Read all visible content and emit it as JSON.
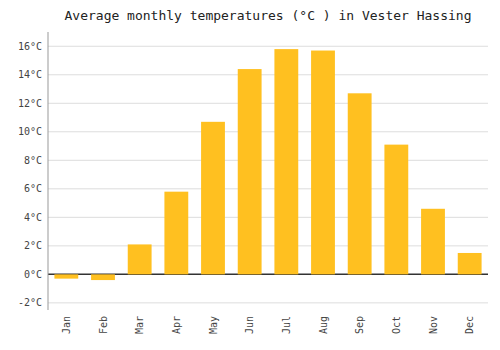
{
  "chart_data": {
    "type": "bar",
    "title": "Average monthly temperatures (°C ) in Vester Hassing",
    "categories": [
      "Jan",
      "Feb",
      "Mar",
      "Apr",
      "May",
      "Jun",
      "Jul",
      "Aug",
      "Sep",
      "Oct",
      "Nov",
      "Dec"
    ],
    "values": [
      -0.3,
      -0.4,
      2.1,
      5.8,
      10.7,
      14.4,
      15.8,
      15.7,
      12.7,
      9.1,
      4.6,
      1.5
    ],
    "color": "#FFC020",
    "ylim": [
      -2.5,
      17.0
    ],
    "yticks": [
      {
        "value": -2,
        "label": "-2°C"
      },
      {
        "value": 0,
        "label": "0°C"
      },
      {
        "value": 2,
        "label": "2°C"
      },
      {
        "value": 4,
        "label": "4°C"
      },
      {
        "value": 6,
        "label": "6°C"
      },
      {
        "value": 8,
        "label": "8°C"
      },
      {
        "value": 10,
        "label": "10°C"
      },
      {
        "value": 12,
        "label": "12°C"
      },
      {
        "value": 14,
        "label": "14°C"
      },
      {
        "value": 16,
        "label": "16°C"
      }
    ],
    "grid": true
  }
}
